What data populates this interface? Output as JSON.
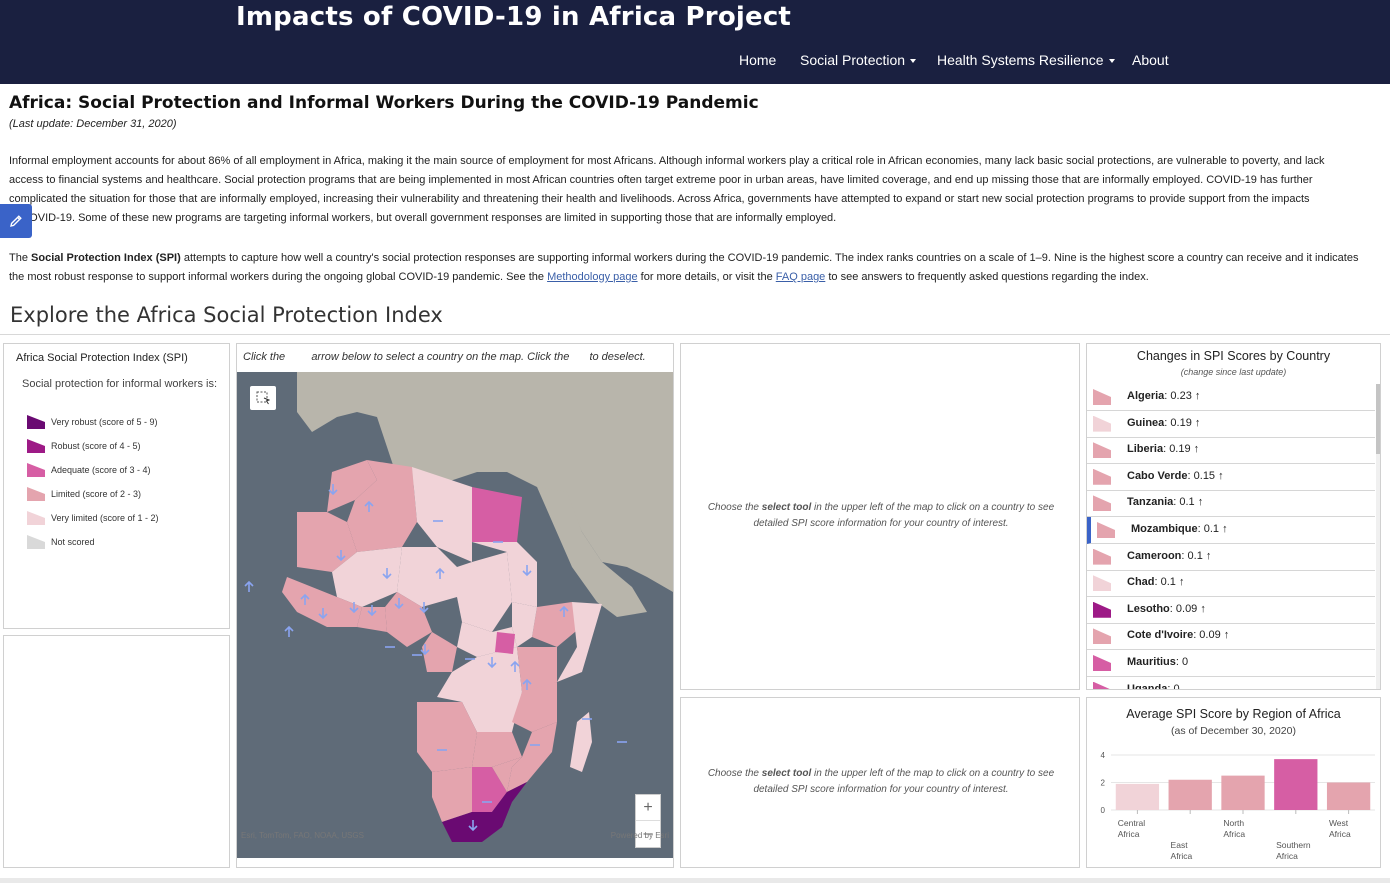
{
  "header": {
    "site_title": "Impacts of COVID-19 in Africa Project",
    "nav": [
      {
        "label": "Home",
        "dropdown": false
      },
      {
        "label": "Social Protection",
        "dropdown": true
      },
      {
        "label": "Health Systems Resilience",
        "dropdown": true
      },
      {
        "label": "About",
        "dropdown": false
      }
    ]
  },
  "intro": {
    "heading": "Africa: Social Protection and Informal Workers During the COVID-19 Pandemic",
    "last_update": "(Last update: December 31, 2020)",
    "para1_lines": [
      "Informal employment accounts for about 86% of all employment in Africa, making it the main source of employment for most Africans. Although informal workers play a critical role in African economies, many lack basic social protections, are vulnerable to poverty, and lack",
      "access to financial systems and healthcare. Social protection programs that are being implemented in most African countries often target extreme poor in urban areas, have limited coverage, and end up missing those that are informally employed. COVID-19 has further",
      "complicated the situation for those that are informally employed, increasing their vulnerability and threatening their health and livelihoods. Across Africa, governments have attempted to expand or start new social protection programs to provide support from the impacts",
      "of COVID-19. Some of these new programs are targeting informal workers, but overall government responses are limited in supporting those that are informally employed."
    ],
    "para2": {
      "prefix": "The ",
      "bold": "Social Protection Index (SPI)",
      "text1": " attempts to capture how well a country's social protection responses are supporting informal workers during the COVID-19 pandemic. The index ranks countries on a scale of 1–9. Nine is the highest score a country can receive and it indicates",
      "text2": "the most robust response to support informal workers during the ongoing global COVID-19 pandemic. See the ",
      "link1": "Methodology page",
      "text3": " for more details, or visit the ",
      "link2": "FAQ page",
      "text4": " to see answers to frequently asked questions regarding the index."
    }
  },
  "explore_title": "Explore the Africa Social Protection Index",
  "legend": {
    "title": "Africa Social Protection Index (SPI)",
    "subtitle": "Social protection for informal workers is:",
    "items": [
      {
        "label": "Very robust (score of 5 - 9)",
        "color": "#6a0a72"
      },
      {
        "label": "Robust (score of 4 - 5)",
        "color": "#9d1a86"
      },
      {
        "label": "Adequate (score of 3 - 4)",
        "color": "#d65ea4"
      },
      {
        "label": "Limited (score of 2 - 3)",
        "color": "#e4a4ae"
      },
      {
        "label": "Very limited (score of 1 - 2)",
        "color": "#f1d3d8"
      },
      {
        "label": "Not scored",
        "color": "#d9d9d9"
      }
    ]
  },
  "map": {
    "instruction_a": "Click the",
    "instruction_b": "arrow below to select a country on the map. Click the",
    "instruction_c": "to deselect.",
    "attribution_left": "Esri, TomTom, FAO, NOAA, USGS",
    "attribution_right": "Powered by Esri",
    "zoom_in": "+",
    "zoom_out": "–"
  },
  "details": {
    "prompt_pre": "Choose the ",
    "prompt_bold": "select tool",
    "prompt_post": " in the upper left of the map to click on a country to see detailed SPI score information for your country of interest."
  },
  "changes": {
    "title": "Changes in SPI Scores by Country",
    "subtitle": "(change since last update)",
    "rows": [
      {
        "country": "Algeria",
        "value": "0.23 ↑",
        "color": "#e4a4ae"
      },
      {
        "country": "Guinea",
        "value": "0.19 ↑",
        "color": "#f1d3d8"
      },
      {
        "country": "Liberia",
        "value": "0.19 ↑",
        "color": "#e4a4ae"
      },
      {
        "country": "Cabo Verde",
        "value": "0.15 ↑",
        "color": "#e4a4ae"
      },
      {
        "country": "Tanzania",
        "value": "0.1 ↑",
        "color": "#e4a4ae"
      },
      {
        "country": "Mozambique",
        "value": "0.1 ↑",
        "color": "#e4a4ae"
      },
      {
        "country": "Cameroon",
        "value": "0.1 ↑",
        "color": "#e4a4ae"
      },
      {
        "country": "Chad",
        "value": "0.1 ↑",
        "color": "#f1d3d8"
      },
      {
        "country": "Lesotho",
        "value": "0.09 ↑",
        "color": "#9d1a86"
      },
      {
        "country": "Cote d'Ivoire",
        "value": "0.09 ↑",
        "color": "#e4a4ae"
      },
      {
        "country": "Mauritius",
        "value": "0",
        "color": "#d65ea4"
      },
      {
        "country": "Uganda",
        "value": "0",
        "color": "#d65ea4"
      }
    ]
  },
  "region_chart": {
    "title": "Average SPI Score by Region of Africa",
    "subtitle": "(as of December 30, 2020)"
  },
  "chart_data": {
    "type": "bar",
    "title": "Average SPI Score by Region of Africa",
    "subtitle": "(as of December 30, 2020)",
    "categories": [
      "Central Africa",
      "East Africa",
      "North Africa",
      "Southern Africa",
      "West Africa"
    ],
    "category_lines": [
      [
        "Central",
        "Africa"
      ],
      [
        "East",
        "Africa"
      ],
      [
        "North",
        "Africa"
      ],
      [
        "Southern",
        "Africa"
      ],
      [
        "West",
        "Africa"
      ]
    ],
    "values": [
      1.9,
      2.2,
      2.5,
      3.7,
      2.0
    ],
    "colors": [
      "#f1d3d8",
      "#e4a4ae",
      "#e4a4ae",
      "#d65ea4",
      "#e4a4ae"
    ],
    "yticks": [
      0,
      2,
      4
    ],
    "ylim": [
      0,
      4
    ],
    "xlabel": "",
    "ylabel": ""
  }
}
